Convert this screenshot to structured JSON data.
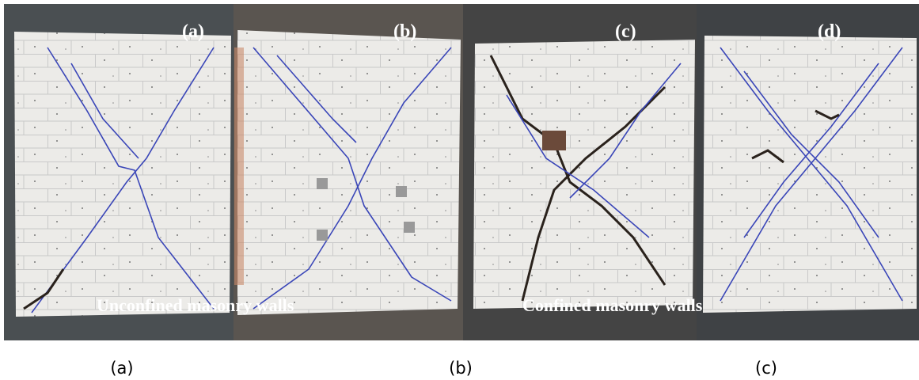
{
  "figure": {
    "panel_labels": [
      "(a)",
      "(b)",
      "(c)",
      "(d)"
    ],
    "group_labels": [
      "Unconfined masonry walls",
      "Confined masonry walls"
    ],
    "captions": [
      "(a)",
      "(b)",
      "(c)"
    ]
  }
}
